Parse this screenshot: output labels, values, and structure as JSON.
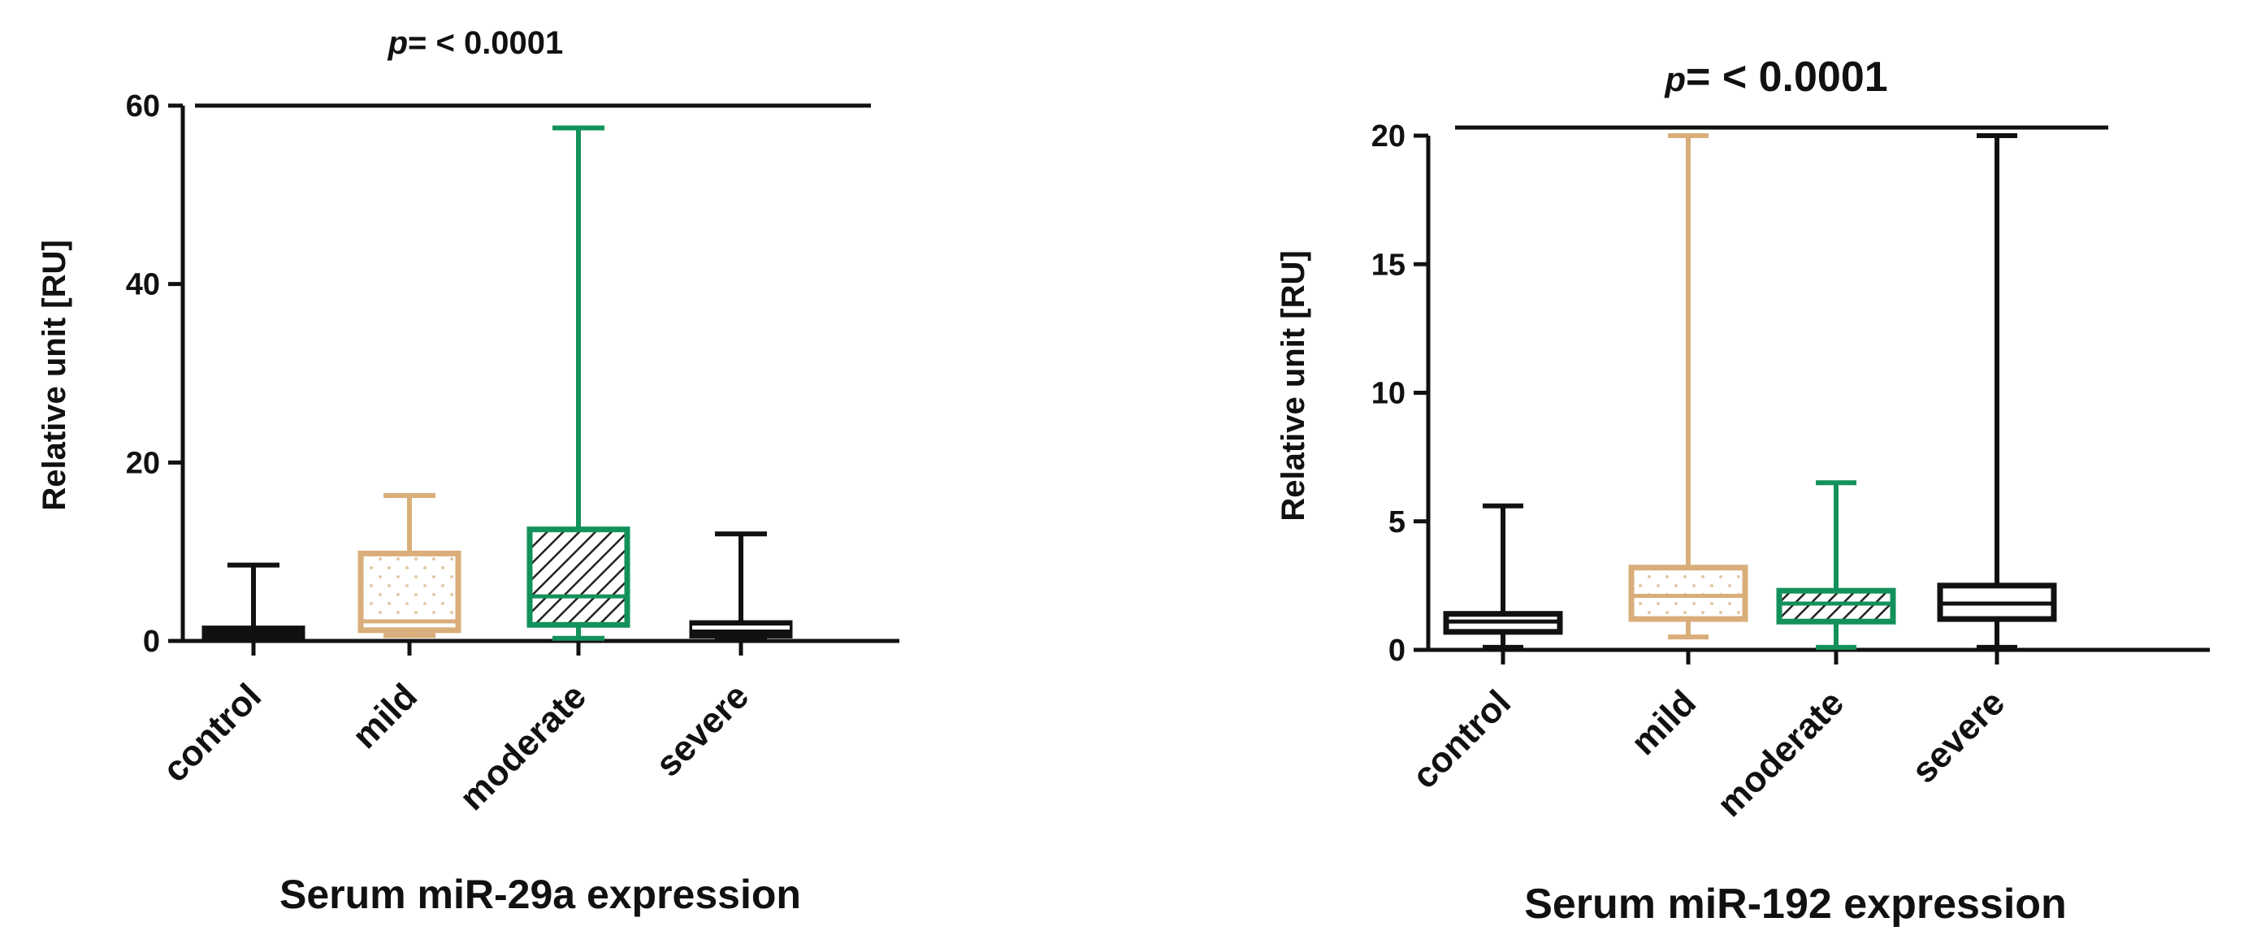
{
  "chart_data": [
    {
      "type": "boxplot",
      "title": "Serum miR-29a expression",
      "significance": {
        "prefix": "p",
        "text": "= < 0.0001"
      },
      "xlabel": "Serum miR-29a expression",
      "ylabel": "Relative unit [RU]",
      "ylim": [
        0,
        60
      ],
      "yticks": [
        0,
        20,
        40,
        60
      ],
      "categories": [
        "control",
        "mild",
        "moderate",
        "severe"
      ],
      "colors": [
        "#111111",
        "#D9AE7A",
        "#12925A",
        "#111111"
      ],
      "fills": [
        "none",
        "dots",
        "hatch",
        "solid"
      ],
      "series": [
        {
          "name": "control",
          "min": 0.1,
          "q1": 0.4,
          "median": 0.9,
          "q3": 1.4,
          "max": 8.5
        },
        {
          "name": "mild",
          "min": 0.6,
          "q1": 1.2,
          "median": 2.2,
          "q3": 9.8,
          "max": 16.3
        },
        {
          "name": "moderate",
          "min": 0.3,
          "q1": 1.8,
          "median": 5.0,
          "q3": 12.5,
          "max": 57.5
        },
        {
          "name": "severe",
          "min": 0.2,
          "q1": 0.6,
          "median": 1.5,
          "q3": 2.0,
          "max": 12.0
        }
      ]
    },
    {
      "type": "boxplot",
      "title": "Serum miR-192 expression",
      "significance": {
        "prefix": "p",
        "text": "= < 0.0001"
      },
      "xlabel": "Serum miR-192 expression",
      "ylabel": "Relative unit [RU]",
      "ylim": [
        0,
        20
      ],
      "yticks": [
        0,
        5,
        10,
        15,
        20
      ],
      "categories": [
        "control",
        "mild",
        "moderate",
        "severe"
      ],
      "colors": [
        "#111111",
        "#D9AE7A",
        "#12925A",
        "#111111"
      ],
      "fills": [
        "none",
        "dots",
        "hatch",
        "none"
      ],
      "series": [
        {
          "name": "control",
          "min": 0.1,
          "q1": 0.7,
          "median": 1.1,
          "q3": 1.4,
          "max": 5.6
        },
        {
          "name": "mild",
          "min": 0.5,
          "q1": 1.2,
          "median": 2.1,
          "q3": 3.2,
          "max": 20.0
        },
        {
          "name": "moderate",
          "min": 0.1,
          "q1": 1.1,
          "median": 1.8,
          "q3": 2.3,
          "max": 6.5
        },
        {
          "name": "severe",
          "min": 0.1,
          "q1": 1.2,
          "median": 1.8,
          "q3": 2.5,
          "max": 20.0
        }
      ]
    }
  ]
}
